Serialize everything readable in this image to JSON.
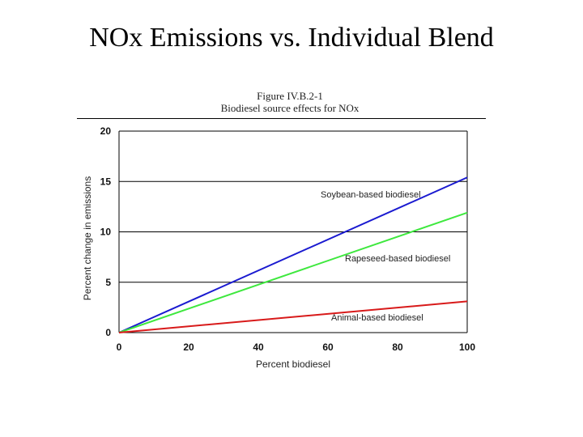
{
  "slide": {
    "title": "NOx Emissions vs. Individual Blend"
  },
  "chart_data": {
    "type": "line",
    "figure_number": "Figure IV.B.2-1",
    "title": "Biodiesel source effects for NOx",
    "xlabel": "Percent biodiesel",
    "ylabel": "Percent change in emissions",
    "xlim": [
      0,
      100
    ],
    "ylim": [
      0,
      20
    ],
    "xticks": [
      0,
      20,
      40,
      60,
      80,
      100
    ],
    "yticks": [
      0,
      5,
      10,
      15,
      20
    ],
    "grid": "horizontal",
    "x": [
      0,
      100
    ],
    "series": [
      {
        "name": "Soybean-based biodiesel",
        "values": [
          0,
          15.4
        ],
        "color": "#1a1ad0"
      },
      {
        "name": "Rapeseed-based biodiesel",
        "values": [
          0,
          11.9
        ],
        "color": "#3ee83e"
      },
      {
        "name": "Animal-based biodiesel",
        "values": [
          0,
          3.1
        ],
        "color": "#d81a1a"
      }
    ]
  }
}
